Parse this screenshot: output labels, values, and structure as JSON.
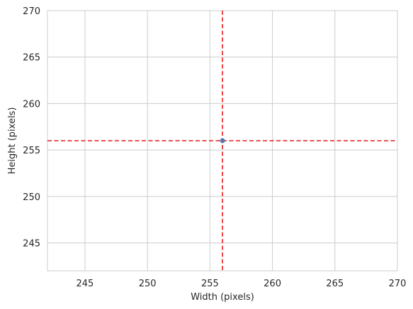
{
  "chart_data": {
    "type": "scatter",
    "title": "",
    "xlabel": "Width (pixels)",
    "ylabel": "Height (pixels)",
    "xlim": [
      242,
      270
    ],
    "ylim": [
      242,
      270
    ],
    "xticks": [
      245,
      250,
      255,
      260,
      265,
      270
    ],
    "yticks": [
      245,
      250,
      255,
      260,
      265,
      270
    ],
    "grid": true,
    "points": [
      {
        "x": 256,
        "y": 256
      }
    ],
    "reference_lines": [
      {
        "orientation": "vertical",
        "value": 256,
        "style": "dashed",
        "color": "#e41a1c"
      },
      {
        "orientation": "horizontal",
        "value": 256,
        "style": "dashed",
        "color": "#e41a1c"
      }
    ],
    "colors": {
      "point": "#4c72b0",
      "grid": "#cccccc",
      "frame": "#cccccc"
    }
  }
}
